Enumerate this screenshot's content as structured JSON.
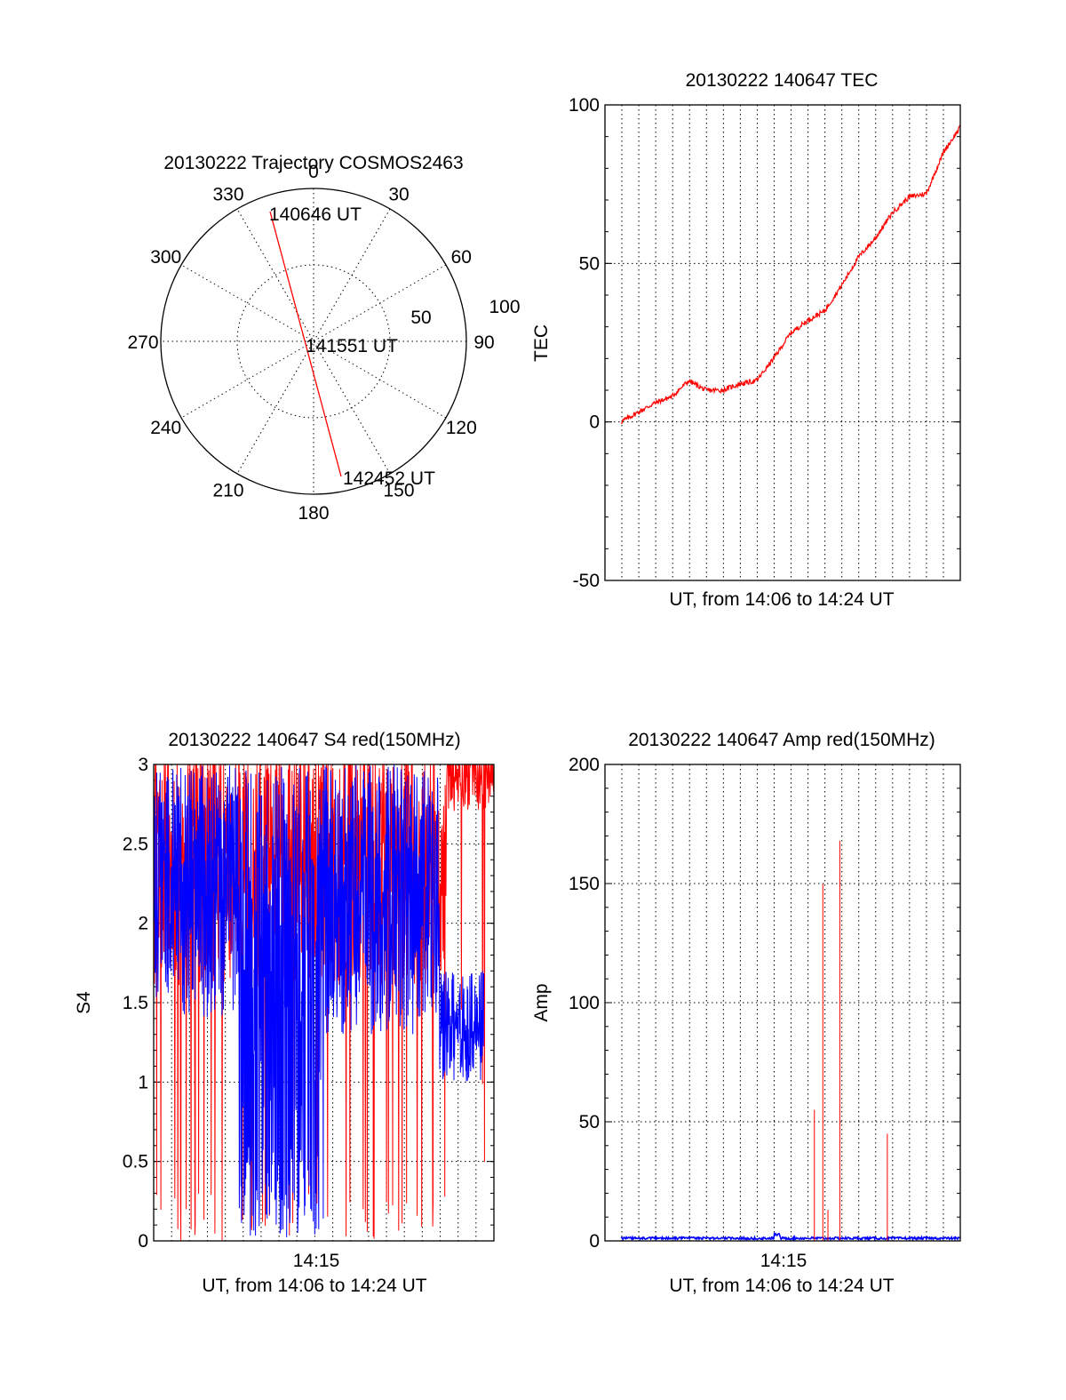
{
  "chart_data": [
    {
      "type": "polar",
      "title": "20130222 Trajectory COSMOS2463",
      "azimuth_labels": [
        "0",
        "30",
        "60",
        "90",
        "120",
        "150",
        "180",
        "210",
        "240",
        "270",
        "300",
        "330"
      ],
      "elevation_labels": [
        "50",
        "100"
      ],
      "trajectory_labels": [
        "140646 UT",
        "141551 UT",
        "142452 UT"
      ],
      "colors": {
        "trajectory": "#ff0000"
      },
      "trajectory": {
        "start": {
          "time": "140646 UT",
          "azimuth": 340,
          "radius": 86
        },
        "mid": {
          "time": "141551 UT",
          "azimuth": 0,
          "radius": 0
        },
        "end": {
          "time": "142452 UT",
          "azimuth": 163,
          "radius": 92
        }
      }
    },
    {
      "type": "line",
      "title": "20130222 140647 TEC",
      "xlabel": "UT, from 14:06 to 14:24 UT",
      "ylabel": "TEC",
      "ylim": [
        -50,
        100
      ],
      "yticks": [
        "-50",
        "0",
        "50",
        "100"
      ],
      "grid": true,
      "colors": {
        "tec": "#ff0000"
      },
      "series": [
        {
          "x": [
            0,
            0.05,
            0.1,
            0.15,
            0.2,
            0.25,
            0.3,
            0.35,
            0.4,
            0.45,
            0.5,
            0.55,
            0.6,
            0.65,
            0.7,
            0.75,
            0.8,
            0.85,
            0.9,
            0.95,
            1.0
          ],
          "values": [
            0,
            3,
            6,
            8,
            13,
            10,
            10,
            12,
            13,
            20,
            28,
            32,
            35,
            43,
            52,
            58,
            66,
            71,
            72,
            85,
            93
          ]
        }
      ]
    },
    {
      "type": "line",
      "title": "20130222 140647 S4 red(150MHz)",
      "xlabel": "UT, from 14:06 to 14:24 UT",
      "ylabel": "S4",
      "ylim": [
        0,
        3
      ],
      "yticks": [
        "0",
        "0.5",
        "1",
        "1.5",
        "2",
        "2.5",
        "3"
      ],
      "xtick_label": "14:15",
      "grid": true,
      "colors": {
        "red": "#ff0000",
        "blue": "#0000ff"
      }
    },
    {
      "type": "line",
      "title": "20130222 140647 Amp red(150MHz)",
      "xlabel": "UT, from 14:06 to 14:24 UT",
      "ylabel": "Amp",
      "ylim": [
        0,
        200
      ],
      "yticks": [
        "0",
        "50",
        "100",
        "150",
        "200"
      ],
      "xtick_label": "14:15",
      "grid": true,
      "colors": {
        "red": "#ff0000",
        "blue": "#0000ff"
      },
      "spikes": [
        {
          "x": 0.57,
          "value": 55
        },
        {
          "x": 0.595,
          "value": 150
        },
        {
          "x": 0.61,
          "value": 13
        },
        {
          "x": 0.645,
          "value": 168
        },
        {
          "x": 0.785,
          "value": 45
        }
      ]
    }
  ]
}
